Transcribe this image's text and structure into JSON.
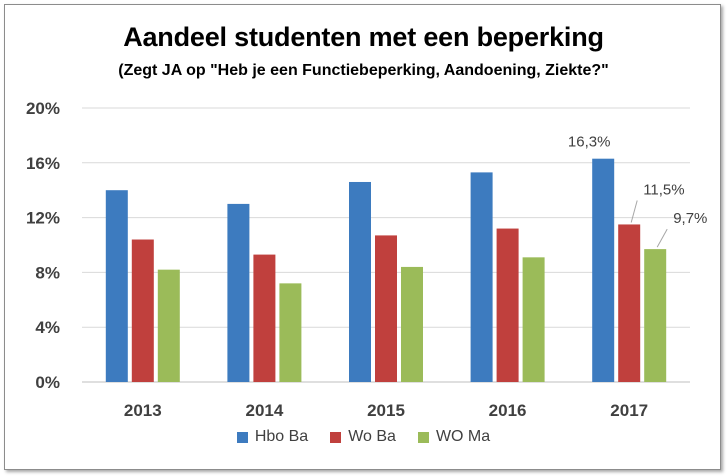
{
  "chart_data": {
    "type": "bar",
    "title": "Aandeel studenten met een beperking",
    "subtitle": "(Zegt JA op \"Heb je een Functiebeperking, Aandoening, Ziekte?\"",
    "categories": [
      "2013",
      "2014",
      "2015",
      "2016",
      "2017"
    ],
    "series": [
      {
        "name": "Hbo Ba",
        "color": "#3d7bbf",
        "values": [
          14.0,
          13.0,
          14.6,
          15.3,
          16.3
        ]
      },
      {
        "name": "Wo Ba",
        "color": "#c0403d",
        "values": [
          10.4,
          9.3,
          10.7,
          11.2,
          11.5
        ]
      },
      {
        "name": "WO Ma",
        "color": "#9bbb59",
        "values": [
          8.2,
          7.2,
          8.4,
          9.1,
          9.7
        ]
      }
    ],
    "ylim": [
      0,
      20
    ],
    "yticks": [
      "0%",
      "4%",
      "8%",
      "12%",
      "16%",
      "20%"
    ],
    "ytick_values": [
      0,
      4,
      8,
      12,
      16,
      20
    ],
    "data_labels": [
      {
        "series": 0,
        "category": 4,
        "text": "16,3%"
      },
      {
        "series": 1,
        "category": 4,
        "text": "11,5%"
      },
      {
        "series": 2,
        "category": 4,
        "text": "9,7%"
      }
    ],
    "grid": true,
    "legend_position": "bottom",
    "xlabel": "",
    "ylabel": ""
  }
}
